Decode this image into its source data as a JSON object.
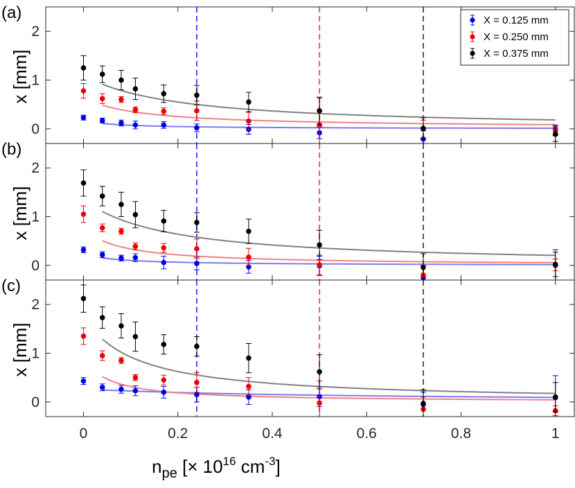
{
  "colors": {
    "blue": "#0000ee",
    "red": "#ee0000",
    "black": "#000000",
    "fit_blue": "#7a7af0",
    "fit_red": "#f28080",
    "fit_black": "#808080",
    "vline_blue": "#4f4ff0",
    "vline_red": "#e85a5a",
    "vline_black": "#555555"
  },
  "chart_data": {
    "type": "scatter",
    "xlabel": {
      "base": "n",
      "sub": "pe",
      "open": " [× 10",
      "sup1": "16",
      "unit": " cm",
      "sup2": "-3",
      "close": "]"
    },
    "xlim": [
      -0.08,
      1.04
    ],
    "xticks": [
      0,
      0.2,
      0.4,
      0.6,
      0.8,
      1
    ],
    "xtick_labels": [
      "0",
      "0.2",
      "0.4",
      "0.6",
      "0.8",
      "1"
    ],
    "vertical_lines": [
      {
        "x": 0.24,
        "series": "X = 0.125 mm",
        "color_key": "vline_blue"
      },
      {
        "x": 0.5,
        "series": "X = 0.250 mm",
        "color_key": "vline_red"
      },
      {
        "x": 0.72,
        "series": "X = 0.375 mm",
        "color_key": "vline_black"
      }
    ],
    "legend": {
      "placement": "top-right",
      "entries": [
        {
          "label": "X = 0.125 mm",
          "color_key": "blue"
        },
        {
          "label": "X = 0.250 mm",
          "color_key": "red"
        },
        {
          "label": "X = 0.375 mm",
          "color_key": "black"
        }
      ]
    },
    "panels": [
      {
        "label": "(a)",
        "ylabel": "x [mm]",
        "ylim": [
          -0.3,
          2.5
        ],
        "yticks": [
          0,
          1,
          2
        ],
        "ytick_labels": [
          "0",
          "1",
          "2"
        ],
        "series": [
          {
            "name": "X = 0.125 mm",
            "color_key": "blue",
            "fit_color_key": "fit_blue",
            "x": [
              0,
              0.04,
              0.08,
              0.11,
              0.17,
              0.24,
              0.35,
              0.5,
              0.72,
              1
            ],
            "y": [
              0.23,
              0.17,
              0.12,
              0.08,
              0.08,
              0.02,
              -0.01,
              -0.08,
              -0.21,
              -0.02
            ],
            "err": [
              0.05,
              0.05,
              0.06,
              0.08,
              0.07,
              0.08,
              0.1,
              0.12,
              0.17,
              0.1
            ],
            "fit_x0": 0.04,
            "fit": {
              "a": 0.166,
              "b": 0.08,
              "c": 0.0
            }
          },
          {
            "name": "X = 0.250 mm",
            "color_key": "red",
            "fit_color_key": "fit_red",
            "x": [
              0,
              0.04,
              0.08,
              0.11,
              0.17,
              0.24,
              0.35,
              0.5,
              0.72,
              1
            ],
            "y": [
              0.78,
              0.62,
              0.6,
              0.39,
              0.36,
              0.37,
              0.16,
              0.08,
              0.0,
              -0.04
            ],
            "err": [
              0.15,
              0.1,
              0.06,
              0.06,
              0.07,
              0.2,
              0.18,
              0.55,
              0.18,
              0.1
            ],
            "fit_x0": 0.04,
            "fit": {
              "a": 0.62,
              "b": 0.12,
              "c": 0.02
            }
          },
          {
            "name": "X = 0.375 mm",
            "color_key": "black",
            "fit_color_key": "fit_black",
            "x": [
              0,
              0.04,
              0.08,
              0.11,
              0.17,
              0.24,
              0.35,
              0.5,
              0.72,
              1
            ],
            "y": [
              1.25,
              1.12,
              1.0,
              0.82,
              0.72,
              0.69,
              0.55,
              0.37,
              0.01,
              -0.11
            ],
            "err": [
              0.25,
              0.17,
              0.2,
              0.22,
              0.18,
              0.2,
              0.2,
              0.28,
              0.22,
              0.15
            ],
            "fit_x0": 0.04,
            "fit": {
              "a": 1.1,
              "b": 0.2,
              "c": 0.0
            }
          }
        ]
      },
      {
        "label": "(b)",
        "ylabel": "x [mm]",
        "ylim": [
          -0.3,
          2.5
        ],
        "yticks": [
          0,
          1,
          2
        ],
        "ytick_labels": [
          "0",
          "1",
          "2"
        ],
        "series": [
          {
            "name": "X = 0.125 mm",
            "color_key": "blue",
            "fit_color_key": "fit_blue",
            "x": [
              0,
              0.04,
              0.08,
              0.11,
              0.17,
              0.24,
              0.35,
              0.5,
              0.72,
              1
            ],
            "y": [
              0.32,
              0.22,
              0.15,
              0.16,
              0.06,
              0.04,
              -0.03,
              -0.01,
              -0.25,
              0.0
            ],
            "err": [
              0.06,
              0.06,
              0.06,
              0.08,
              0.13,
              0.13,
              0.13,
              0.2,
              0.25,
              0.32
            ],
            "fit_x0": 0.04,
            "fit": {
              "a": 0.23,
              "b": 0.08,
              "c": 0.0
            }
          },
          {
            "name": "X = 0.250 mm",
            "color_key": "red",
            "fit_color_key": "fit_red",
            "x": [
              0,
              0.04,
              0.08,
              0.11,
              0.17,
              0.24,
              0.35,
              0.5,
              0.72,
              1
            ],
            "y": [
              1.05,
              0.77,
              0.7,
              0.39,
              0.36,
              0.34,
              0.17,
              0.01,
              -0.2,
              0.01
            ],
            "err": [
              0.17,
              0.08,
              0.06,
              0.07,
              0.09,
              0.2,
              0.18,
              0.2,
              0.2,
              0.12
            ],
            "fit_x0": 0.04,
            "fit": {
              "a": 0.76,
              "b": 0.08,
              "c": 0.0
            }
          },
          {
            "name": "X = 0.375 mm",
            "color_key": "black",
            "fit_color_key": "fit_black",
            "x": [
              0,
              0.04,
              0.08,
              0.11,
              0.17,
              0.24,
              0.35,
              0.5,
              0.72,
              1
            ],
            "y": [
              1.69,
              1.42,
              1.25,
              1.04,
              0.91,
              0.88,
              0.7,
              0.42,
              -0.04,
              0.02
            ],
            "err": [
              0.27,
              0.2,
              0.25,
              0.27,
              0.22,
              0.2,
              0.25,
              0.3,
              0.28,
              0.25
            ],
            "fit_x0": 0.04,
            "fit": {
              "a": 1.35,
              "b": 0.18,
              "c": 0.0
            }
          }
        ]
      },
      {
        "label": "(c)",
        "ylabel": "x [mm]",
        "ylim": [
          -0.3,
          2.5
        ],
        "yticks": [
          0,
          1,
          2
        ],
        "ytick_labels": [
          "0",
          "1",
          "2"
        ],
        "series": [
          {
            "name": "X = 0.125 mm",
            "color_key": "blue",
            "fit_color_key": "fit_blue",
            "x": [
              0,
              0.04,
              0.08,
              0.11,
              0.17,
              0.24,
              0.35,
              0.5,
              0.72,
              1
            ],
            "y": [
              0.43,
              0.3,
              0.26,
              0.23,
              0.2,
              0.15,
              0.1,
              0.11,
              -0.05,
              0.09
            ],
            "err": [
              0.07,
              0.07,
              0.08,
              0.1,
              0.12,
              0.15,
              0.15,
              0.2,
              0.25,
              0.45
            ],
            "fit_x0": 0.04,
            "fit": {
              "a": 0.265,
              "b": 0.55,
              "c": 0.0
            }
          },
          {
            "name": "X = 0.250 mm",
            "color_key": "red",
            "fit_color_key": "fit_red",
            "x": [
              0,
              0.04,
              0.08,
              0.11,
              0.17,
              0.24,
              0.35,
              0.5,
              0.72,
              1
            ],
            "y": [
              1.35,
              0.95,
              0.85,
              0.5,
              0.45,
              0.4,
              0.32,
              -0.02,
              -0.15,
              -0.18
            ],
            "err": [
              0.17,
              0.1,
              0.06,
              0.06,
              0.1,
              0.2,
              0.18,
              0.45,
              0.25,
              0.1
            ],
            "fit_x0": 0.04,
            "fit": {
              "a": 0.94,
              "b": 0.05,
              "c": 0.0
            }
          },
          {
            "name": "X = 0.375 mm",
            "color_key": "black",
            "fit_color_key": "fit_black",
            "x": [
              0,
              0.04,
              0.08,
              0.11,
              0.17,
              0.24,
              0.35,
              0.5,
              0.72,
              1
            ],
            "y": [
              2.12,
              1.73,
              1.56,
              1.34,
              1.18,
              1.14,
              0.9,
              0.62,
              -0.03,
              0.1
            ],
            "err": [
              0.28,
              0.22,
              0.25,
              0.3,
              0.2,
              0.2,
              0.3,
              0.35,
              0.28,
              0.3
            ],
            "fit_x0": 0.04,
            "fit": {
              "a": 1.76,
              "b": 0.11,
              "c": 0.0
            }
          }
        ]
      }
    ]
  }
}
